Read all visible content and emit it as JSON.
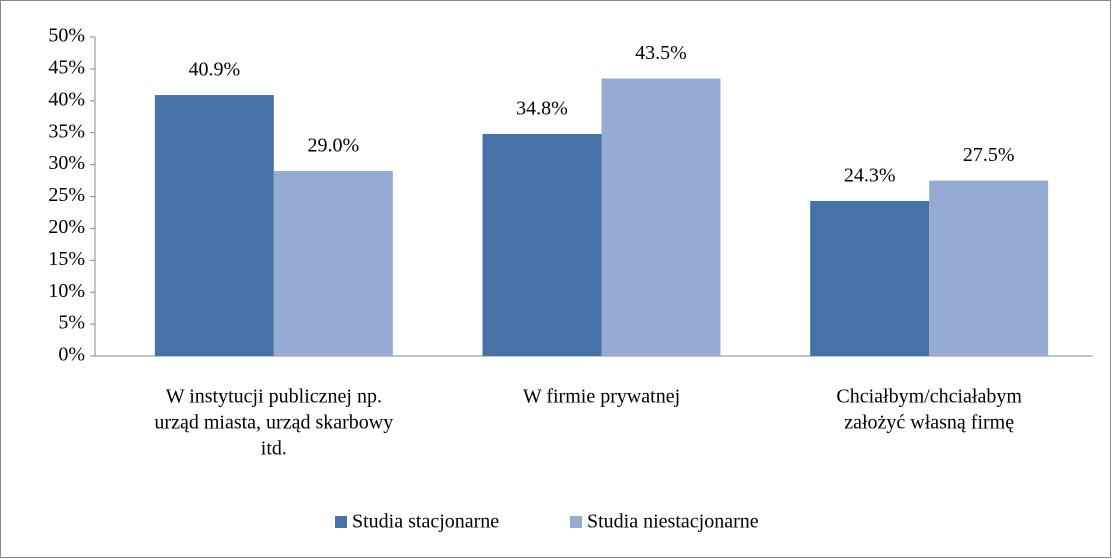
{
  "chart_data": {
    "type": "bar",
    "categories": [
      [
        "W instytucji publicznej np.",
        "urząd miasta, urząd skarbowy",
        "itd."
      ],
      [
        "W firmie prywatnej"
      ],
      [
        "Chciałbym/chciałabym",
        "założyć własną firmę"
      ]
    ],
    "series": [
      {
        "name": "Studia stacjonarne",
        "color": "#4573a7",
        "values": [
          40.9,
          34.8,
          24.3
        ],
        "value_labels": [
          "40.9%",
          "34.8%",
          "24.3%"
        ]
      },
      {
        "name": "Studia niestacjonarne",
        "color": "#96abd3",
        "values": [
          29.0,
          43.5,
          27.5
        ],
        "value_labels": [
          "29.0%",
          "43.5%",
          "27.5%"
        ]
      }
    ],
    "ylim": [
      0,
      50
    ],
    "yticks": [
      {
        "value": 0,
        "label": "0%"
      },
      {
        "value": 5,
        "label": "5%"
      },
      {
        "value": 10,
        "label": "10%"
      },
      {
        "value": 15,
        "label": "15%"
      },
      {
        "value": 20,
        "label": "20%"
      },
      {
        "value": 25,
        "label": "25%"
      },
      {
        "value": 30,
        "label": "30%"
      },
      {
        "value": 35,
        "label": "35%"
      },
      {
        "value": 40,
        "label": "40%"
      },
      {
        "value": 45,
        "label": "45%"
      },
      {
        "value": 50,
        "label": "50%"
      }
    ],
    "legend": "bottom"
  }
}
